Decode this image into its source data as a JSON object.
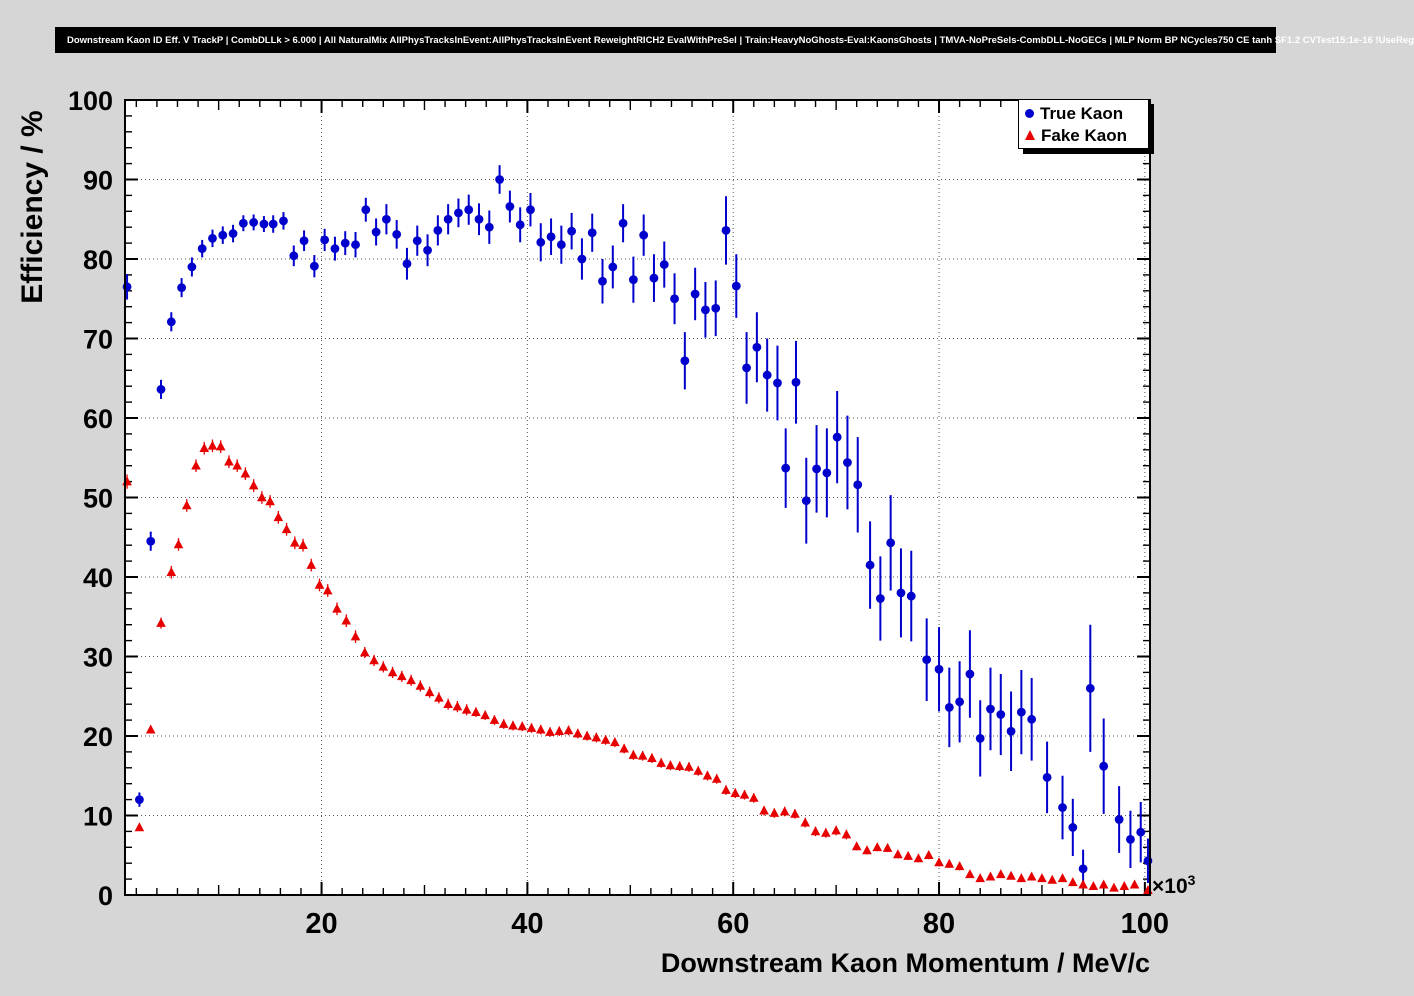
{
  "header": {
    "title": "Downstream Kaon ID Eff. V TrackP | CombDLLk > 6.000 | All NaturalMix AllPhysTracksInEvent:AllPhysTracksInEvent ReweightRICH2 EvalWithPreSel | Train:HeavyNoGhosts-Eval:KaonsGhosts | TMVA-NoPreSels-CombDLL-NoGECs | MLP Norm BP NCycles750 CE tanh SF1.2 CVTest15:1e-16 !UseReg"
  },
  "chart_data": {
    "type": "scatter",
    "title": "",
    "xlabel": "Downstream Kaon Momentum / MeV/c",
    "ylabel": "Efficiency / %",
    "x_axis_multiplier_base": "×10",
    "x_axis_multiplier_exp": "3",
    "xlim": [
      0.9,
      100.5
    ],
    "ylim": [
      0,
      100
    ],
    "xticks": [
      20,
      40,
      60,
      80,
      100
    ],
    "yticks": [
      0,
      10,
      20,
      30,
      40,
      50,
      60,
      70,
      80,
      90,
      100
    ],
    "grid": true,
    "grid_style": "dotted",
    "legend_position": "top-right",
    "series": [
      {
        "name": "True Kaon",
        "marker": "circle",
        "color": "#0000cc",
        "points": [
          [
            1.1,
            76.5,
            1.6
          ],
          [
            2.3,
            12.0,
            0.9
          ],
          [
            3.4,
            44.5,
            1.2
          ],
          [
            4.4,
            63.6,
            1.2
          ],
          [
            5.4,
            72.1,
            1.2
          ],
          [
            6.4,
            76.4,
            1.2
          ],
          [
            7.4,
            79.0,
            1.2
          ],
          [
            8.4,
            81.3,
            1.1
          ],
          [
            9.4,
            82.6,
            1.1
          ],
          [
            10.4,
            83.0,
            1.1
          ],
          [
            11.4,
            83.2,
            1.1
          ],
          [
            12.4,
            84.5,
            1.0
          ],
          [
            13.4,
            84.6,
            1.0
          ],
          [
            14.4,
            84.4,
            1.0
          ],
          [
            15.3,
            84.4,
            1.1
          ],
          [
            16.3,
            84.8,
            1.1
          ],
          [
            17.3,
            80.4,
            1.3
          ],
          [
            18.3,
            82.3,
            1.3
          ],
          [
            19.3,
            79.1,
            1.4
          ],
          [
            20.3,
            82.4,
            1.4
          ],
          [
            21.3,
            81.3,
            1.5
          ],
          [
            22.3,
            82.0,
            1.5
          ],
          [
            23.3,
            81.8,
            1.6
          ],
          [
            24.3,
            86.2,
            1.5
          ],
          [
            25.3,
            83.4,
            1.7
          ],
          [
            26.3,
            85.0,
            1.9
          ],
          [
            27.3,
            83.1,
            1.8
          ],
          [
            28.3,
            79.4,
            2.0
          ],
          [
            29.3,
            82.3,
            1.9
          ],
          [
            30.3,
            81.1,
            2.0
          ],
          [
            31.3,
            83.6,
            1.9
          ],
          [
            32.3,
            85.0,
            1.9
          ],
          [
            33.3,
            85.8,
            1.8
          ],
          [
            34.3,
            86.2,
            1.9
          ],
          [
            35.3,
            85.0,
            2.0
          ],
          [
            36.3,
            84.0,
            2.1
          ],
          [
            37.3,
            90.0,
            1.8
          ],
          [
            38.3,
            86.6,
            2.0
          ],
          [
            39.3,
            84.3,
            2.2
          ],
          [
            40.3,
            86.2,
            2.1
          ],
          [
            41.3,
            82.1,
            2.4
          ],
          [
            42.3,
            82.8,
            2.3
          ],
          [
            43.3,
            81.8,
            2.4
          ],
          [
            44.3,
            83.5,
            2.3
          ],
          [
            45.3,
            80.0,
            2.6
          ],
          [
            46.3,
            83.3,
            2.4
          ],
          [
            47.3,
            77.2,
            2.8
          ],
          [
            48.3,
            79.0,
            2.7
          ],
          [
            49.3,
            84.5,
            2.4
          ],
          [
            50.3,
            77.4,
            2.9
          ],
          [
            51.3,
            83.0,
            2.6
          ],
          [
            52.3,
            77.6,
            3.0
          ],
          [
            53.3,
            79.3,
            2.9
          ],
          [
            54.3,
            75.0,
            3.2
          ],
          [
            55.3,
            67.2,
            3.6
          ],
          [
            56.3,
            75.6,
            3.3
          ],
          [
            57.3,
            73.6,
            3.5
          ],
          [
            58.3,
            73.8,
            3.5
          ],
          [
            59.3,
            83.6,
            4.3
          ],
          [
            60.3,
            76.6,
            4.0
          ],
          [
            61.3,
            66.3,
            4.5
          ],
          [
            62.3,
            68.9,
            4.4
          ],
          [
            63.3,
            65.4,
            4.6
          ],
          [
            64.3,
            64.4,
            4.7
          ],
          [
            65.1,
            53.7,
            5.0
          ],
          [
            66.1,
            64.5,
            5.2
          ],
          [
            67.1,
            49.6,
            5.4
          ],
          [
            68.1,
            53.6,
            5.5
          ],
          [
            69.1,
            53.1,
            5.6
          ],
          [
            70.1,
            57.6,
            5.8
          ],
          [
            71.1,
            54.4,
            5.9
          ],
          [
            72.1,
            51.6,
            6.0
          ],
          [
            73.3,
            41.5,
            5.5
          ],
          [
            74.3,
            37.3,
            5.3
          ],
          [
            75.3,
            44.3,
            6.0
          ],
          [
            76.3,
            38.0,
            5.6
          ],
          [
            77.3,
            37.6,
            5.7
          ],
          [
            78.8,
            29.6,
            5.2
          ],
          [
            80.0,
            28.4,
            5.3
          ],
          [
            81.0,
            23.6,
            5.0
          ],
          [
            82.0,
            24.3,
            5.1
          ],
          [
            83.0,
            27.8,
            5.5
          ],
          [
            84.0,
            19.7,
            4.8
          ],
          [
            85.0,
            23.4,
            5.2
          ],
          [
            86.0,
            22.7,
            5.1
          ],
          [
            87.0,
            20.6,
            5.0
          ],
          [
            88.0,
            23.0,
            5.3
          ],
          [
            89.0,
            22.1,
            5.2
          ],
          [
            90.5,
            14.8,
            4.5
          ],
          [
            92.0,
            11.0,
            4.0
          ],
          [
            93.0,
            8.5,
            3.6
          ],
          [
            94.0,
            3.3,
            2.4
          ],
          [
            94.7,
            26.0,
            8.0
          ],
          [
            96.0,
            16.2,
            6.0
          ],
          [
            97.5,
            9.5,
            4.2
          ],
          [
            98.6,
            7.0,
            3.6
          ],
          [
            99.6,
            7.9,
            3.8
          ],
          [
            100.3,
            4.3,
            2.8
          ]
        ]
      },
      {
        "name": "Fake Kaon",
        "marker": "triangle",
        "color": "#e60000",
        "points": [
          [
            1.1,
            52.0,
            0.9
          ],
          [
            2.3,
            8.5,
            0.4
          ],
          [
            3.4,
            20.8,
            0.5
          ],
          [
            4.4,
            34.2,
            0.7
          ],
          [
            5.4,
            40.6,
            0.8
          ],
          [
            6.1,
            44.1,
            0.8
          ],
          [
            6.9,
            49.0,
            0.8
          ],
          [
            7.8,
            54.0,
            0.8
          ],
          [
            8.6,
            56.2,
            0.8
          ],
          [
            9.4,
            56.5,
            0.8
          ],
          [
            10.2,
            56.4,
            0.8
          ],
          [
            11.0,
            54.5,
            0.8
          ],
          [
            11.8,
            54.0,
            0.8
          ],
          [
            12.6,
            53.0,
            0.8
          ],
          [
            13.4,
            51.5,
            0.8
          ],
          [
            14.2,
            50.0,
            0.8
          ],
          [
            15.0,
            49.5,
            0.8
          ],
          [
            15.8,
            47.5,
            0.8
          ],
          [
            16.6,
            46.0,
            0.8
          ],
          [
            17.4,
            44.3,
            0.8
          ],
          [
            18.2,
            44.0,
            0.8
          ],
          [
            19.0,
            41.5,
            0.8
          ],
          [
            19.8,
            39.0,
            0.8
          ],
          [
            20.6,
            38.3,
            0.8
          ],
          [
            21.5,
            36.0,
            0.8
          ],
          [
            22.4,
            34.5,
            0.8
          ],
          [
            23.3,
            32.5,
            0.8
          ],
          [
            24.2,
            30.5,
            0.7
          ],
          [
            25.1,
            29.5,
            0.7
          ],
          [
            26.0,
            28.7,
            0.7
          ],
          [
            26.9,
            28.0,
            0.7
          ],
          [
            27.8,
            27.5,
            0.7
          ],
          [
            28.7,
            27.0,
            0.7
          ],
          [
            29.6,
            26.3,
            0.7
          ],
          [
            30.5,
            25.5,
            0.7
          ],
          [
            31.4,
            24.8,
            0.7
          ],
          [
            32.3,
            24.0,
            0.7
          ],
          [
            33.2,
            23.7,
            0.7
          ],
          [
            34.1,
            23.3,
            0.7
          ],
          [
            35.0,
            23.0,
            0.6
          ],
          [
            35.9,
            22.6,
            0.6
          ],
          [
            36.8,
            22.0,
            0.6
          ],
          [
            37.7,
            21.5,
            0.6
          ],
          [
            38.6,
            21.3,
            0.6
          ],
          [
            39.5,
            21.2,
            0.6
          ],
          [
            40.4,
            21.0,
            0.6
          ],
          [
            41.3,
            20.8,
            0.6
          ],
          [
            42.2,
            20.5,
            0.6
          ],
          [
            43.1,
            20.6,
            0.6
          ],
          [
            44.0,
            20.7,
            0.6
          ],
          [
            44.9,
            20.3,
            0.6
          ],
          [
            45.8,
            20.0,
            0.6
          ],
          [
            46.7,
            19.8,
            0.6
          ],
          [
            47.6,
            19.5,
            0.6
          ],
          [
            48.5,
            19.2,
            0.6
          ],
          [
            49.4,
            18.4,
            0.6
          ],
          [
            50.3,
            17.6,
            0.6
          ],
          [
            51.2,
            17.5,
            0.6
          ],
          [
            52.1,
            17.2,
            0.6
          ],
          [
            53.0,
            16.6,
            0.6
          ],
          [
            53.9,
            16.3,
            0.6
          ],
          [
            54.8,
            16.2,
            0.6
          ],
          [
            55.7,
            16.1,
            0.6
          ],
          [
            56.6,
            15.6,
            0.6
          ],
          [
            57.5,
            15.0,
            0.6
          ],
          [
            58.4,
            14.6,
            0.6
          ],
          [
            59.3,
            13.2,
            0.6
          ],
          [
            60.2,
            12.8,
            0.6
          ],
          [
            61.1,
            12.6,
            0.6
          ],
          [
            62.0,
            12.2,
            0.6
          ],
          [
            63.0,
            10.6,
            0.6
          ],
          [
            64.0,
            10.3,
            0.6
          ],
          [
            65.0,
            10.5,
            0.6
          ],
          [
            66.0,
            10.2,
            0.6
          ],
          [
            67.0,
            9.1,
            0.6
          ],
          [
            68.0,
            8.0,
            0.6
          ],
          [
            69.0,
            7.8,
            0.6
          ],
          [
            70.0,
            8.1,
            0.6
          ],
          [
            71.0,
            7.6,
            0.6
          ],
          [
            72.0,
            6.1,
            0.5
          ],
          [
            73.0,
            5.6,
            0.5
          ],
          [
            74.0,
            6.0,
            0.5
          ],
          [
            75.0,
            5.9,
            0.5
          ],
          [
            76.0,
            5.1,
            0.5
          ],
          [
            77.0,
            4.9,
            0.5
          ],
          [
            78.0,
            4.6,
            0.5
          ],
          [
            79.0,
            5.0,
            0.5
          ],
          [
            80.0,
            4.1,
            0.5
          ],
          [
            81.0,
            3.9,
            0.5
          ],
          [
            82.0,
            3.6,
            0.5
          ],
          [
            83.0,
            2.6,
            0.4
          ],
          [
            84.0,
            2.1,
            0.4
          ],
          [
            85.0,
            2.3,
            0.4
          ],
          [
            86.0,
            2.6,
            0.4
          ],
          [
            87.0,
            2.4,
            0.4
          ],
          [
            88.0,
            2.1,
            0.4
          ],
          [
            89.0,
            2.3,
            0.4
          ],
          [
            90.0,
            2.1,
            0.4
          ],
          [
            91.0,
            1.9,
            0.4
          ],
          [
            92.0,
            2.1,
            0.4
          ],
          [
            93.0,
            1.6,
            0.4
          ],
          [
            94.0,
            1.3,
            0.4
          ],
          [
            95.0,
            1.1,
            0.4
          ],
          [
            96.0,
            1.3,
            0.4
          ],
          [
            97.0,
            0.9,
            0.3
          ],
          [
            98.0,
            1.1,
            0.3
          ],
          [
            99.0,
            1.3,
            0.3
          ],
          [
            100.3,
            0.6,
            0.3
          ]
        ]
      }
    ]
  }
}
